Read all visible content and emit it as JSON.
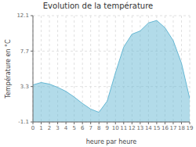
{
  "chart_data": {
    "type": "area",
    "title": "Evolution de la température",
    "xlabel": "heure par heure",
    "ylabel": "Température en °C",
    "x": [
      0,
      1,
      2,
      3,
      4,
      5,
      6,
      7,
      8,
      9,
      10,
      11,
      12,
      13,
      14,
      15,
      16,
      17,
      18,
      19
    ],
    "values": [
      3.5,
      3.8,
      3.6,
      3.2,
      2.7,
      2.0,
      1.2,
      0.5,
      0.1,
      1.5,
      5.0,
      8.2,
      9.8,
      10.2,
      11.2,
      11.5,
      10.6,
      9.0,
      6.2,
      1.8
    ],
    "color": "#66b8d4",
    "xlim": [
      0,
      19
    ],
    "xticks": [
      0,
      1,
      2,
      3,
      4,
      5,
      6,
      7,
      8,
      9,
      10,
      11,
      12,
      13,
      14,
      15,
      16,
      17,
      18,
      19
    ],
    "ylim": [
      -1.1,
      12.1
    ],
    "yticks": [
      -1.1,
      3.3,
      7.7,
      12.1
    ],
    "grid": true
  }
}
